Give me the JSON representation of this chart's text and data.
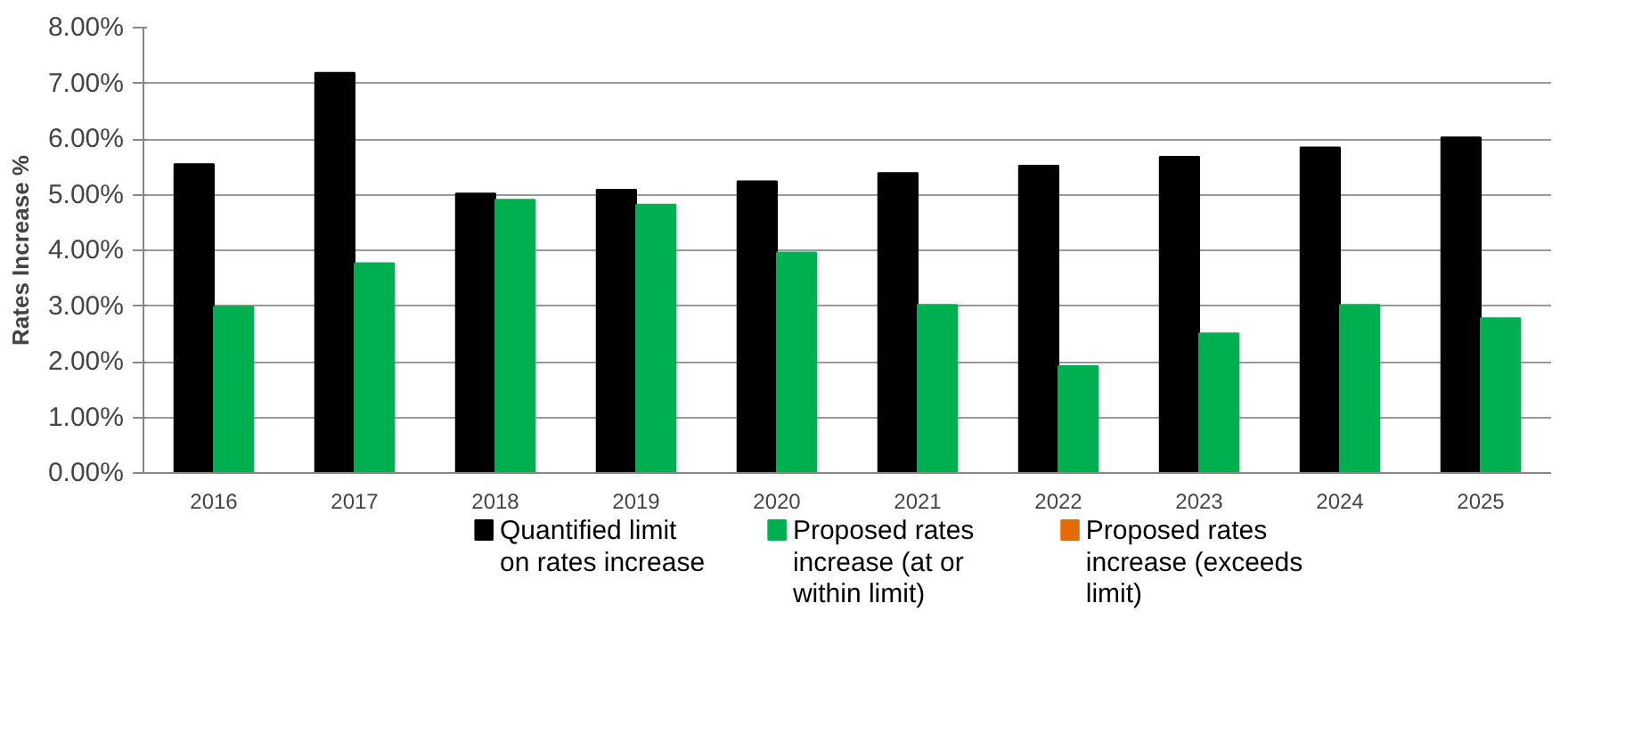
{
  "chart_data": {
    "type": "bar",
    "ylabel": "Rates Increase %",
    "categories": [
      "2016",
      "2017",
      "2018",
      "2019",
      "2020",
      "2021",
      "2022",
      "2023",
      "2024",
      "2025"
    ],
    "series": [
      {
        "name": "Quantified limit on rates increase",
        "color": "#000000",
        "values": [
          5.55,
          7.19,
          5.02,
          5.09,
          5.24,
          5.39,
          5.52,
          5.68,
          5.85,
          6.03
        ]
      },
      {
        "name": "Proposed rates increase (at or within limit)",
        "color": "#00b050",
        "values": [
          2.99,
          3.77,
          4.91,
          4.82,
          3.96,
          3.02,
          1.92,
          2.51,
          3.02,
          2.78
        ]
      },
      {
        "name": "Proposed rates increase (exceeds limit)",
        "color": "#e36c09",
        "values": [
          null,
          null,
          null,
          null,
          null,
          null,
          null,
          null,
          null,
          null
        ]
      }
    ],
    "ylim": [
      0,
      8
    ],
    "yticks": [
      {
        "value": 0,
        "label": "0.00%"
      },
      {
        "value": 1,
        "label": "1.00%"
      },
      {
        "value": 2,
        "label": "2.00%"
      },
      {
        "value": 3,
        "label": "3.00%"
      },
      {
        "value": 4,
        "label": "4.00%"
      },
      {
        "value": 5,
        "label": "5.00%"
      },
      {
        "value": 6,
        "label": "6.00%"
      },
      {
        "value": 7,
        "label": "7.00%"
      },
      {
        "value": 8,
        "label": "8.00%"
      }
    ],
    "grid": "y",
    "legend": "bottom"
  }
}
